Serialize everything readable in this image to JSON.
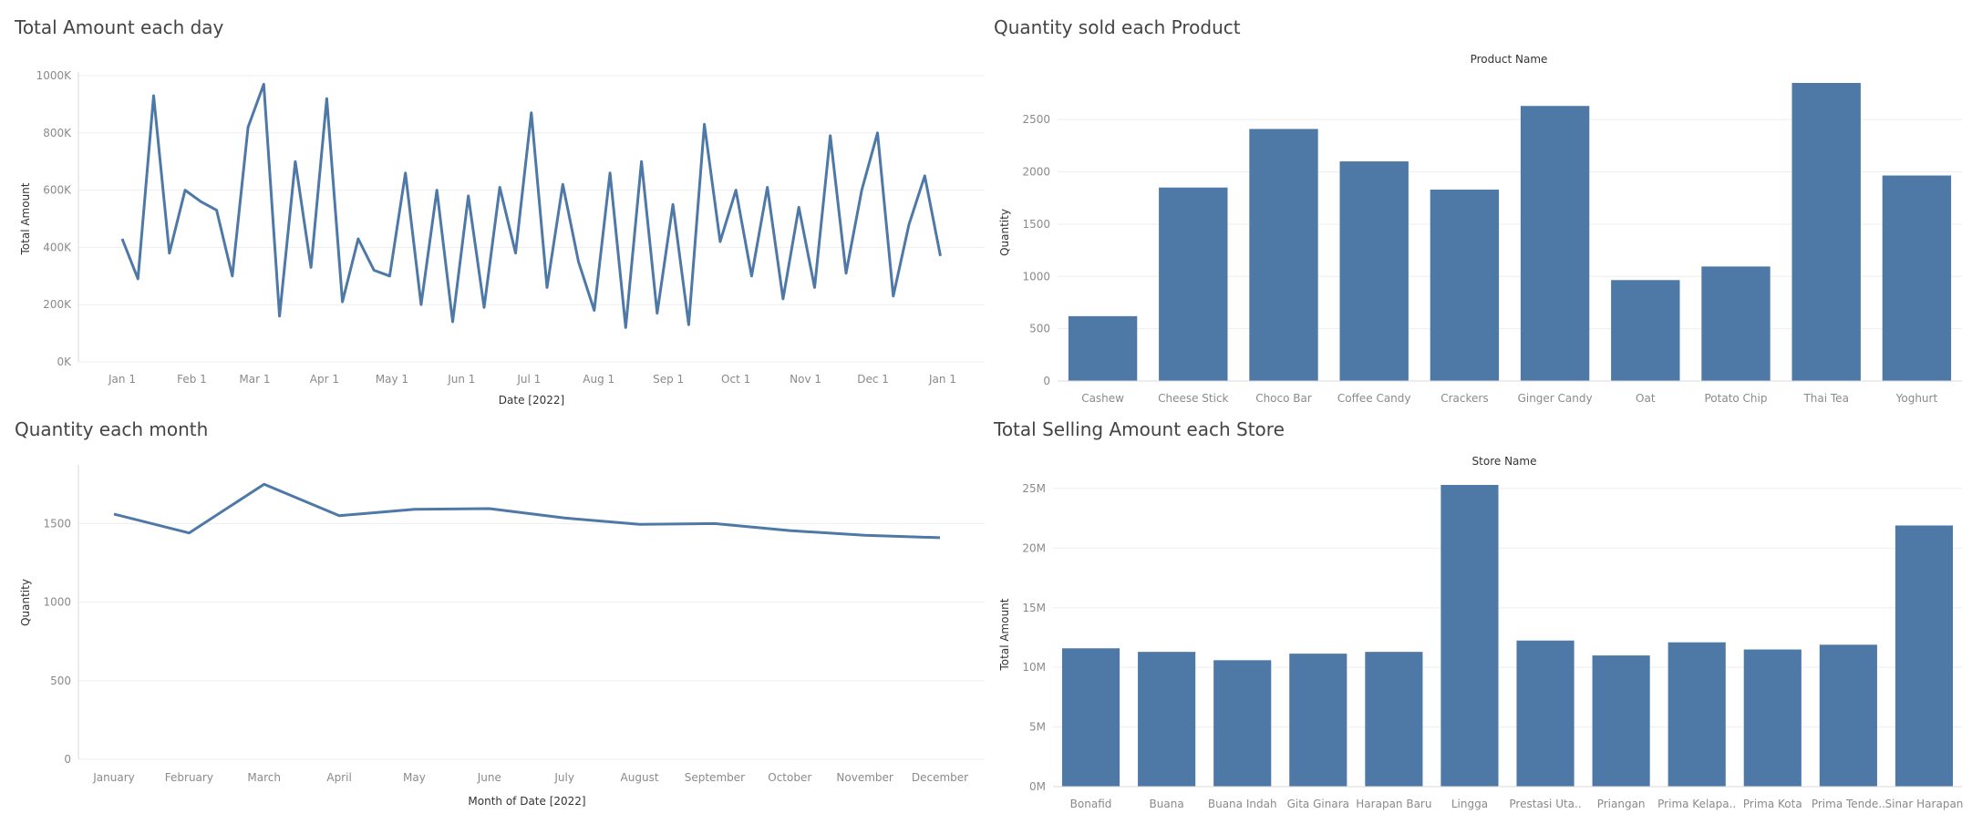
{
  "colors": {
    "mark": "#4e79a7",
    "grid": "#eeeeee",
    "tick_text": "#8a8a8a"
  },
  "chart_data": [
    {
      "id": "daily",
      "type": "line",
      "title": "Total Amount each day",
      "xlabel": "Date [2022]",
      "ylabel": "Total Amount",
      "x_domain": [
        "2022-01-01",
        "2023-01-01"
      ],
      "x_ticks": [
        "Jan 1",
        "Feb 1",
        "Mar 1",
        "Apr 1",
        "May 1",
        "Jun 1",
        "Jul 1",
        "Aug 1",
        "Sep 1",
        "Oct 1",
        "Nov 1",
        "Dec 1",
        "Jan 1"
      ],
      "y_ticks": [
        {
          "v": 0,
          "label": "0K"
        },
        {
          "v": 200000,
          "label": "200K"
        },
        {
          "v": 400000,
          "label": "400K"
        },
        {
          "v": 600000,
          "label": "600K"
        },
        {
          "v": 800000,
          "label": "800K"
        },
        {
          "v": 1000000,
          "label": "1000K"
        }
      ],
      "ylim": [
        0,
        1000000
      ],
      "grid": true,
      "x": [
        "2022-01-01",
        "2022-01-08",
        "2022-01-15",
        "2022-01-22",
        "2022-01-29",
        "2022-02-05",
        "2022-02-12",
        "2022-02-19",
        "2022-02-26",
        "2022-03-05",
        "2022-03-12",
        "2022-03-19",
        "2022-03-26",
        "2022-04-02",
        "2022-04-09",
        "2022-04-16",
        "2022-04-23",
        "2022-04-30",
        "2022-05-07",
        "2022-05-14",
        "2022-05-21",
        "2022-05-28",
        "2022-06-04",
        "2022-06-11",
        "2022-06-18",
        "2022-06-25",
        "2022-07-02",
        "2022-07-09",
        "2022-07-16",
        "2022-07-23",
        "2022-07-30",
        "2022-08-06",
        "2022-08-13",
        "2022-08-20",
        "2022-08-27",
        "2022-09-03",
        "2022-09-10",
        "2022-09-17",
        "2022-09-24",
        "2022-10-01",
        "2022-10-08",
        "2022-10-15",
        "2022-10-22",
        "2022-10-29",
        "2022-11-05",
        "2022-11-12",
        "2022-11-19",
        "2022-11-26",
        "2022-12-03",
        "2022-12-10",
        "2022-12-17",
        "2022-12-24",
        "2022-12-31"
      ],
      "values": [
        430000,
        290000,
        930000,
        380000,
        600000,
        560000,
        530000,
        300000,
        820000,
        970000,
        160000,
        700000,
        330000,
        920000,
        210000,
        430000,
        320000,
        300000,
        660000,
        200000,
        600000,
        140000,
        580000,
        190000,
        610000,
        380000,
        870000,
        260000,
        620000,
        350000,
        180000,
        660000,
        120000,
        700000,
        170000,
        550000,
        130000,
        830000,
        420000,
        600000,
        300000,
        610000,
        220000,
        540000,
        260000,
        790000,
        310000,
        600000,
        800000,
        230000,
        480000,
        650000,
        370000
      ]
    },
    {
      "id": "product",
      "type": "bar",
      "title": "Quantity sold each Product",
      "header": "Product Name",
      "ylabel": "Quantity",
      "categories": [
        "Cashew",
        "Cheese Stick",
        "Choco Bar",
        "Coffee Candy",
        "Crackers",
        "Ginger Candy",
        "Oat",
        "Potato Chip",
        "Thai Tea",
        "Yoghurt"
      ],
      "values": [
        620,
        1850,
        2410,
        2100,
        1830,
        2630,
        965,
        1095,
        2850,
        1965
      ],
      "y_ticks": [
        {
          "v": 0,
          "label": "0"
        },
        {
          "v": 500,
          "label": "500"
        },
        {
          "v": 1000,
          "label": "1000"
        },
        {
          "v": 1500,
          "label": "1500"
        },
        {
          "v": 2000,
          "label": "2000"
        },
        {
          "v": 2500,
          "label": "2500"
        }
      ],
      "ylim": [
        0,
        2850
      ],
      "grid": true
    },
    {
      "id": "monthly",
      "type": "line",
      "title": "Quantity each month",
      "xlabel": "Month of Date [2022]",
      "ylabel": "Quantity",
      "categories": [
        "January",
        "February",
        "March",
        "April",
        "May",
        "June",
        "July",
        "August",
        "September",
        "October",
        "November",
        "December"
      ],
      "values": [
        1560,
        1440,
        1750,
        1550,
        1590,
        1595,
        1535,
        1495,
        1500,
        1455,
        1425,
        1410
      ],
      "y_ticks": [
        {
          "v": 0,
          "label": "0"
        },
        {
          "v": 500,
          "label": "500"
        },
        {
          "v": 1000,
          "label": "1000"
        },
        {
          "v": 1500,
          "label": "1500"
        }
      ],
      "ylim": [
        0,
        1850
      ],
      "grid": true
    },
    {
      "id": "store",
      "type": "bar",
      "title": "Total Selling Amount each Store",
      "header": "Store Name",
      "ylabel": "Total Amount",
      "categories": [
        "Bonafid",
        "Buana",
        "Buana Indah",
        "Gita Ginara",
        "Harapan Baru",
        "Lingga",
        "Prestasi Uta..",
        "Priangan",
        "Prima Kelapa..",
        "Prima Kota",
        "Prima Tende..",
        "Sinar Harapan"
      ],
      "values": [
        11600000,
        11300000,
        10600000,
        11150000,
        11300000,
        25300000,
        12250000,
        11000000,
        12100000,
        11500000,
        11900000,
        21900000
      ],
      "y_ticks": [
        {
          "v": 0,
          "label": "0M"
        },
        {
          "v": 5000000,
          "label": "5M"
        },
        {
          "v": 10000000,
          "label": "10M"
        },
        {
          "v": 15000000,
          "label": "15M"
        },
        {
          "v": 20000000,
          "label": "20M"
        },
        {
          "v": 25000000,
          "label": "25M"
        }
      ],
      "ylim": [
        0,
        25300000
      ],
      "grid": true
    }
  ]
}
